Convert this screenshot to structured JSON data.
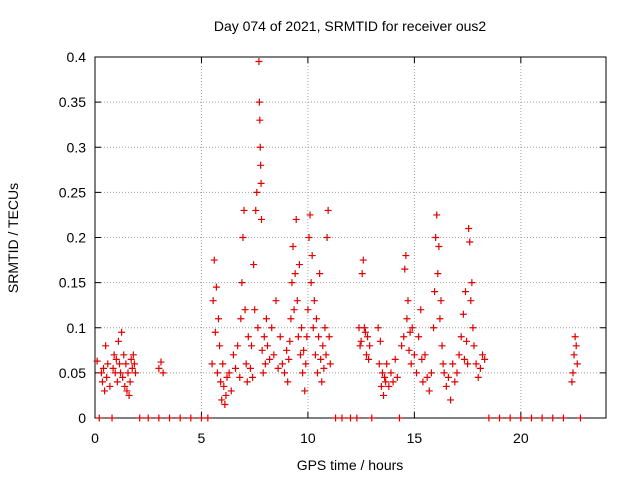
{
  "chart_data": {
    "type": "scatter",
    "title": "Day 074 of 2021, SRMTID for receiver ous2",
    "xlabel": "GPS time / hours",
    "ylabel": "SRMTID / TECUs",
    "xlim": [
      0,
      24
    ],
    "ylim": [
      0,
      0.4
    ],
    "xticks": [
      0,
      5,
      10,
      15,
      20
    ],
    "yticks": [
      0,
      0.05,
      0.1,
      0.15,
      0.2,
      0.25,
      0.3,
      0.35,
      0.4
    ],
    "xtick_labels": [
      "0",
      "5",
      "10",
      "15",
      "20"
    ],
    "ytick_labels": [
      "0",
      "0.05",
      "0.1",
      "0.15",
      "0.2",
      "0.25",
      "0.3",
      "0.35",
      "0.4"
    ],
    "grid": true,
    "marker": "+",
    "color": "#e00000",
    "series": [
      {
        "name": "SRMTID",
        "points": [
          [
            0.1,
            0.063
          ],
          [
            0.2,
            0.0
          ],
          [
            0.3,
            0.05
          ],
          [
            0.35,
            0.04
          ],
          [
            0.4,
            0.055
          ],
          [
            0.45,
            0.03
          ],
          [
            0.5,
            0.08
          ],
          [
            0.55,
            0.045
          ],
          [
            0.6,
            0.06
          ],
          [
            0.7,
            0.035
          ],
          [
            0.8,
            0.0
          ],
          [
            0.85,
            0.055
          ],
          [
            0.9,
            0.07
          ],
          [
            0.95,
            0.05
          ],
          [
            1.0,
            0.065
          ],
          [
            1.05,
            0.04
          ],
          [
            1.1,
            0.085
          ],
          [
            1.15,
            0.06
          ],
          [
            1.2,
            0.05
          ],
          [
            1.25,
            0.095
          ],
          [
            1.3,
            0.045
          ],
          [
            1.35,
            0.07
          ],
          [
            1.4,
            0.035
          ],
          [
            1.45,
            0.06
          ],
          [
            1.5,
            0.03
          ],
          [
            1.55,
            0.05
          ],
          [
            1.6,
            0.025
          ],
          [
            1.65,
            0.04
          ],
          [
            1.7,
            0.065
          ],
          [
            1.75,
            0.055
          ],
          [
            1.8,
            0.07
          ],
          [
            1.85,
            0.06
          ],
          [
            1.9,
            0.05
          ],
          [
            2.1,
            0.0
          ],
          [
            2.5,
            0.0
          ],
          [
            3.0,
            0.0
          ],
          [
            3.0,
            0.055
          ],
          [
            3.1,
            0.062
          ],
          [
            3.2,
            0.05
          ],
          [
            3.5,
            0.0
          ],
          [
            4.0,
            0.0
          ],
          [
            4.5,
            0.0
          ],
          [
            5.0,
            0.0
          ],
          [
            5.3,
            0.0
          ],
          [
            5.5,
            0.06
          ],
          [
            5.55,
            0.13
          ],
          [
            5.6,
            0.175
          ],
          [
            5.65,
            0.095
          ],
          [
            5.7,
            0.145
          ],
          [
            5.75,
            0.05
          ],
          [
            5.8,
            0.11
          ],
          [
            5.85,
            0.08
          ],
          [
            5.9,
            0.04
          ],
          [
            5.95,
            0.02
          ],
          [
            6.0,
            0.06
          ],
          [
            6.05,
            0.035
          ],
          [
            6.1,
            0.015
          ],
          [
            6.15,
            0.025
          ],
          [
            6.2,
            0.045
          ],
          [
            6.3,
            0.05
          ],
          [
            6.4,
            0.03
          ],
          [
            6.5,
            0.07
          ],
          [
            6.6,
            0.055
          ],
          [
            6.7,
            0.08
          ],
          [
            6.8,
            0.045
          ],
          [
            6.85,
            0.11
          ],
          [
            6.9,
            0.15
          ],
          [
            6.95,
            0.2
          ],
          [
            7.0,
            0.23
          ],
          [
            7.05,
            0.12
          ],
          [
            7.1,
            0.06
          ],
          [
            7.15,
            0.04
          ],
          [
            7.2,
            0.09
          ],
          [
            7.3,
            0.055
          ],
          [
            7.35,
            0.08
          ],
          [
            7.4,
            0.045
          ],
          [
            7.45,
            0.17
          ],
          [
            7.5,
            0.12
          ],
          [
            7.55,
            0.23
          ],
          [
            7.6,
            0.25
          ],
          [
            7.65,
            0.1
          ],
          [
            7.7,
            0.395
          ],
          [
            7.72,
            0.35
          ],
          [
            7.74,
            0.33
          ],
          [
            7.76,
            0.3
          ],
          [
            7.78,
            0.28
          ],
          [
            7.8,
            0.26
          ],
          [
            7.82,
            0.22
          ],
          [
            7.85,
            0.075
          ],
          [
            7.9,
            0.05
          ],
          [
            7.95,
            0.09
          ],
          [
            8.0,
            0.06
          ],
          [
            8.05,
            0.11
          ],
          [
            8.1,
            0.08
          ],
          [
            8.2,
            0.065
          ],
          [
            8.3,
            0.1
          ],
          [
            8.4,
            0.07
          ],
          [
            8.5,
            0.13
          ],
          [
            8.6,
            0.055
          ],
          [
            8.7,
            0.09
          ],
          [
            8.8,
            0.06
          ],
          [
            8.9,
            0.05
          ],
          [
            9.0,
            0.075
          ],
          [
            9.05,
            0.04
          ],
          [
            9.1,
            0.065
          ],
          [
            9.15,
            0.085
          ],
          [
            9.2,
            0.11
          ],
          [
            9.25,
            0.15
          ],
          [
            9.3,
            0.19
          ],
          [
            9.35,
            0.12
          ],
          [
            9.4,
            0.16
          ],
          [
            9.45,
            0.22
          ],
          [
            9.5,
            0.13
          ],
          [
            9.55,
            0.09
          ],
          [
            9.6,
            0.17
          ],
          [
            9.65,
            0.07
          ],
          [
            9.7,
            0.1
          ],
          [
            9.75,
            0.05
          ],
          [
            9.8,
            0.075
          ],
          [
            9.85,
            0.03
          ],
          [
            9.9,
            0.06
          ],
          [
            9.95,
            0.09
          ],
          [
            10.0,
            0.12
          ],
          [
            10.05,
            0.2
          ],
          [
            10.1,
            0.225
          ],
          [
            10.15,
            0.15
          ],
          [
            10.2,
            0.18
          ],
          [
            10.25,
            0.1
          ],
          [
            10.3,
            0.13
          ],
          [
            10.35,
            0.07
          ],
          [
            10.4,
            0.11
          ],
          [
            10.45,
            0.05
          ],
          [
            10.5,
            0.09
          ],
          [
            10.55,
            0.16
          ],
          [
            10.6,
            0.065
          ],
          [
            10.65,
            0.04
          ],
          [
            10.7,
            0.08
          ],
          [
            10.75,
            0.055
          ],
          [
            10.8,
            0.1
          ],
          [
            10.85,
            0.07
          ],
          [
            10.9,
            0.2
          ],
          [
            10.95,
            0.23
          ],
          [
            11.0,
            0.09
          ],
          [
            11.05,
            0.06
          ],
          [
            11.3,
            0.0
          ],
          [
            11.6,
            0.0
          ],
          [
            12.0,
            0.0
          ],
          [
            12.3,
            0.0
          ],
          [
            12.4,
            0.1
          ],
          [
            12.45,
            0.08
          ],
          [
            12.5,
            0.085
          ],
          [
            12.55,
            0.16
          ],
          [
            12.6,
            0.175
          ],
          [
            12.65,
            0.1
          ],
          [
            12.7,
            0.095
          ],
          [
            12.75,
            0.07
          ],
          [
            12.8,
            0.09
          ],
          [
            12.85,
            0.065
          ],
          [
            12.9,
            0.08
          ],
          [
            13.0,
            0.0
          ],
          [
            13.3,
            0.1
          ],
          [
            13.35,
            0.06
          ],
          [
            13.4,
            0.085
          ],
          [
            13.45,
            0.035
          ],
          [
            13.5,
            0.05
          ],
          [
            13.55,
            0.025
          ],
          [
            13.6,
            0.045
          ],
          [
            13.65,
            0.04
          ],
          [
            13.7,
            0.06
          ],
          [
            13.8,
            0.035
          ],
          [
            13.9,
            0.05
          ],
          [
            14.0,
            0.04
          ],
          [
            14.1,
            0.065
          ],
          [
            14.2,
            0.045
          ],
          [
            14.3,
            0.0
          ],
          [
            14.4,
            0.08
          ],
          [
            14.5,
            0.09
          ],
          [
            14.55,
            0.165
          ],
          [
            14.6,
            0.18
          ],
          [
            14.65,
            0.11
          ],
          [
            14.7,
            0.13
          ],
          [
            14.75,
            0.075
          ],
          [
            14.8,
            0.095
          ],
          [
            14.85,
            0.06
          ],
          [
            14.9,
            0.1
          ],
          [
            15.0,
            0.07
          ],
          [
            15.1,
            0.05
          ],
          [
            15.2,
            0.09
          ],
          [
            15.3,
            0.12
          ],
          [
            15.35,
            0.065
          ],
          [
            15.4,
            0.04
          ],
          [
            15.5,
            0.07
          ],
          [
            15.6,
            0.045
          ],
          [
            15.7,
            0.03
          ],
          [
            15.8,
            0.05
          ],
          [
            15.9,
            0.1
          ],
          [
            15.95,
            0.14
          ],
          [
            16.0,
            0.2
          ],
          [
            16.05,
            0.225
          ],
          [
            16.1,
            0.16
          ],
          [
            16.15,
            0.19
          ],
          [
            16.2,
            0.11
          ],
          [
            16.25,
            0.13
          ],
          [
            16.3,
            0.08
          ],
          [
            16.35,
            0.06
          ],
          [
            16.4,
            0.05
          ],
          [
            16.5,
            0.035
          ],
          [
            16.6,
            0.045
          ],
          [
            16.7,
            0.02
          ],
          [
            16.8,
            0.06
          ],
          [
            16.9,
            0.04
          ],
          [
            17.0,
            0.05
          ],
          [
            17.1,
            0.07
          ],
          [
            17.2,
            0.09
          ],
          [
            17.3,
            0.115
          ],
          [
            17.35,
            0.065
          ],
          [
            17.4,
            0.14
          ],
          [
            17.45,
            0.085
          ],
          [
            17.5,
            0.06
          ],
          [
            17.55,
            0.21
          ],
          [
            17.6,
            0.195
          ],
          [
            17.65,
            0.13
          ],
          [
            17.7,
            0.15
          ],
          [
            17.75,
            0.1
          ],
          [
            17.8,
            0.08
          ],
          [
            17.9,
            0.06
          ],
          [
            18.0,
            0.045
          ],
          [
            18.1,
            0.055
          ],
          [
            18.2,
            0.07
          ],
          [
            18.3,
            0.065
          ],
          [
            18.5,
            0.0
          ],
          [
            19.0,
            0.0
          ],
          [
            19.5,
            0.0
          ],
          [
            20.0,
            0.0
          ],
          [
            20.5,
            0.0
          ],
          [
            21.0,
            0.0
          ],
          [
            21.5,
            0.0
          ],
          [
            22.0,
            0.0
          ],
          [
            22.4,
            0.04
          ],
          [
            22.45,
            0.05
          ],
          [
            22.5,
            0.07
          ],
          [
            22.55,
            0.09
          ],
          [
            22.6,
            0.08
          ],
          [
            22.65,
            0.06
          ],
          [
            22.8,
            0.0
          ]
        ]
      }
    ]
  }
}
